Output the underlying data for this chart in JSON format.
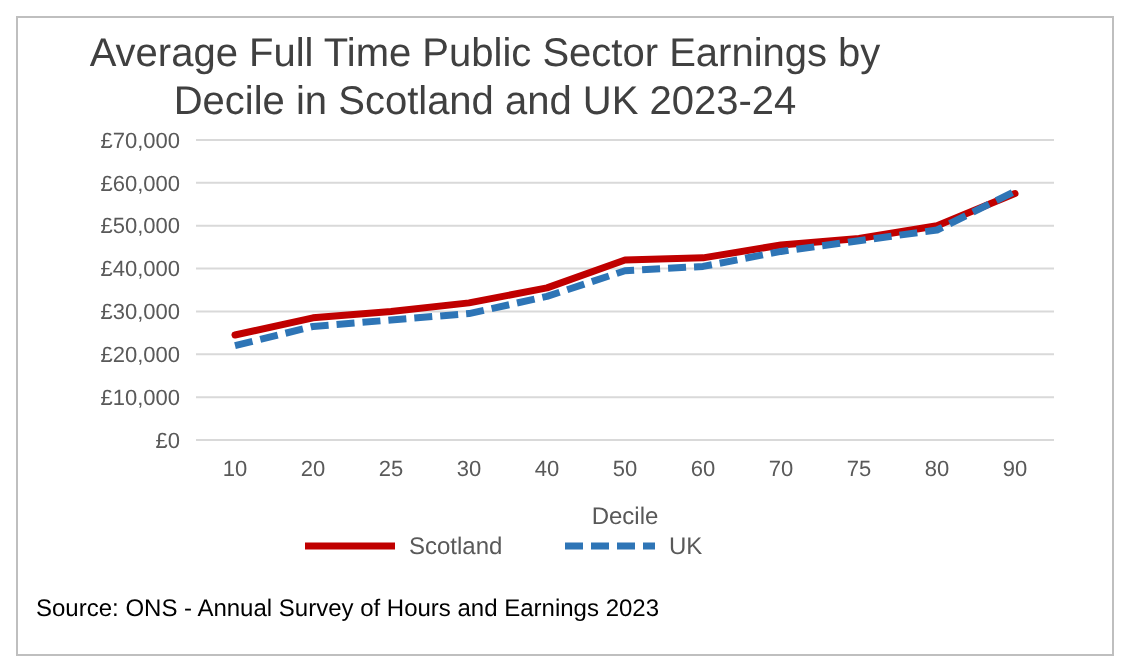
{
  "chart_data": {
    "type": "line",
    "title": "Average Full Time Public Sector Earnings by Decile in Scotland and UK 2023-24",
    "xlabel": "Decile",
    "categories": [
      "10",
      "20",
      "25",
      "30",
      "40",
      "50",
      "60",
      "70",
      "75",
      "80",
      "90"
    ],
    "series": [
      {
        "name": "Scotland",
        "color": "#c00000",
        "line_style": "solid",
        "values": [
          24500,
          28500,
          30000,
          32000,
          35500,
          42000,
          42500,
          45500,
          47000,
          50000,
          57500
        ]
      },
      {
        "name": "UK",
        "color": "#2e75b6",
        "line_style": "dashed",
        "values": [
          22000,
          26500,
          28000,
          29500,
          33500,
          39500,
          40500,
          44000,
          46500,
          49000,
          58000
        ]
      }
    ],
    "ylim": [
      0,
      70000
    ],
    "yticks": [
      {
        "value": 0,
        "label": "£0"
      },
      {
        "value": 10000,
        "label": "£10,000"
      },
      {
        "value": 20000,
        "label": "£20,000"
      },
      {
        "value": 30000,
        "label": "£30,000"
      },
      {
        "value": 40000,
        "label": "£40,000"
      },
      {
        "value": 50000,
        "label": "£50,000"
      },
      {
        "value": 60000,
        "label": "£60,000"
      },
      {
        "value": 70000,
        "label": "£70,000"
      }
    ],
    "grid": "y",
    "legend": "bottom",
    "marker": "none",
    "annotations": [
      "Source: ONS - Annual Survey of Hours and Earnings 2023"
    ]
  }
}
